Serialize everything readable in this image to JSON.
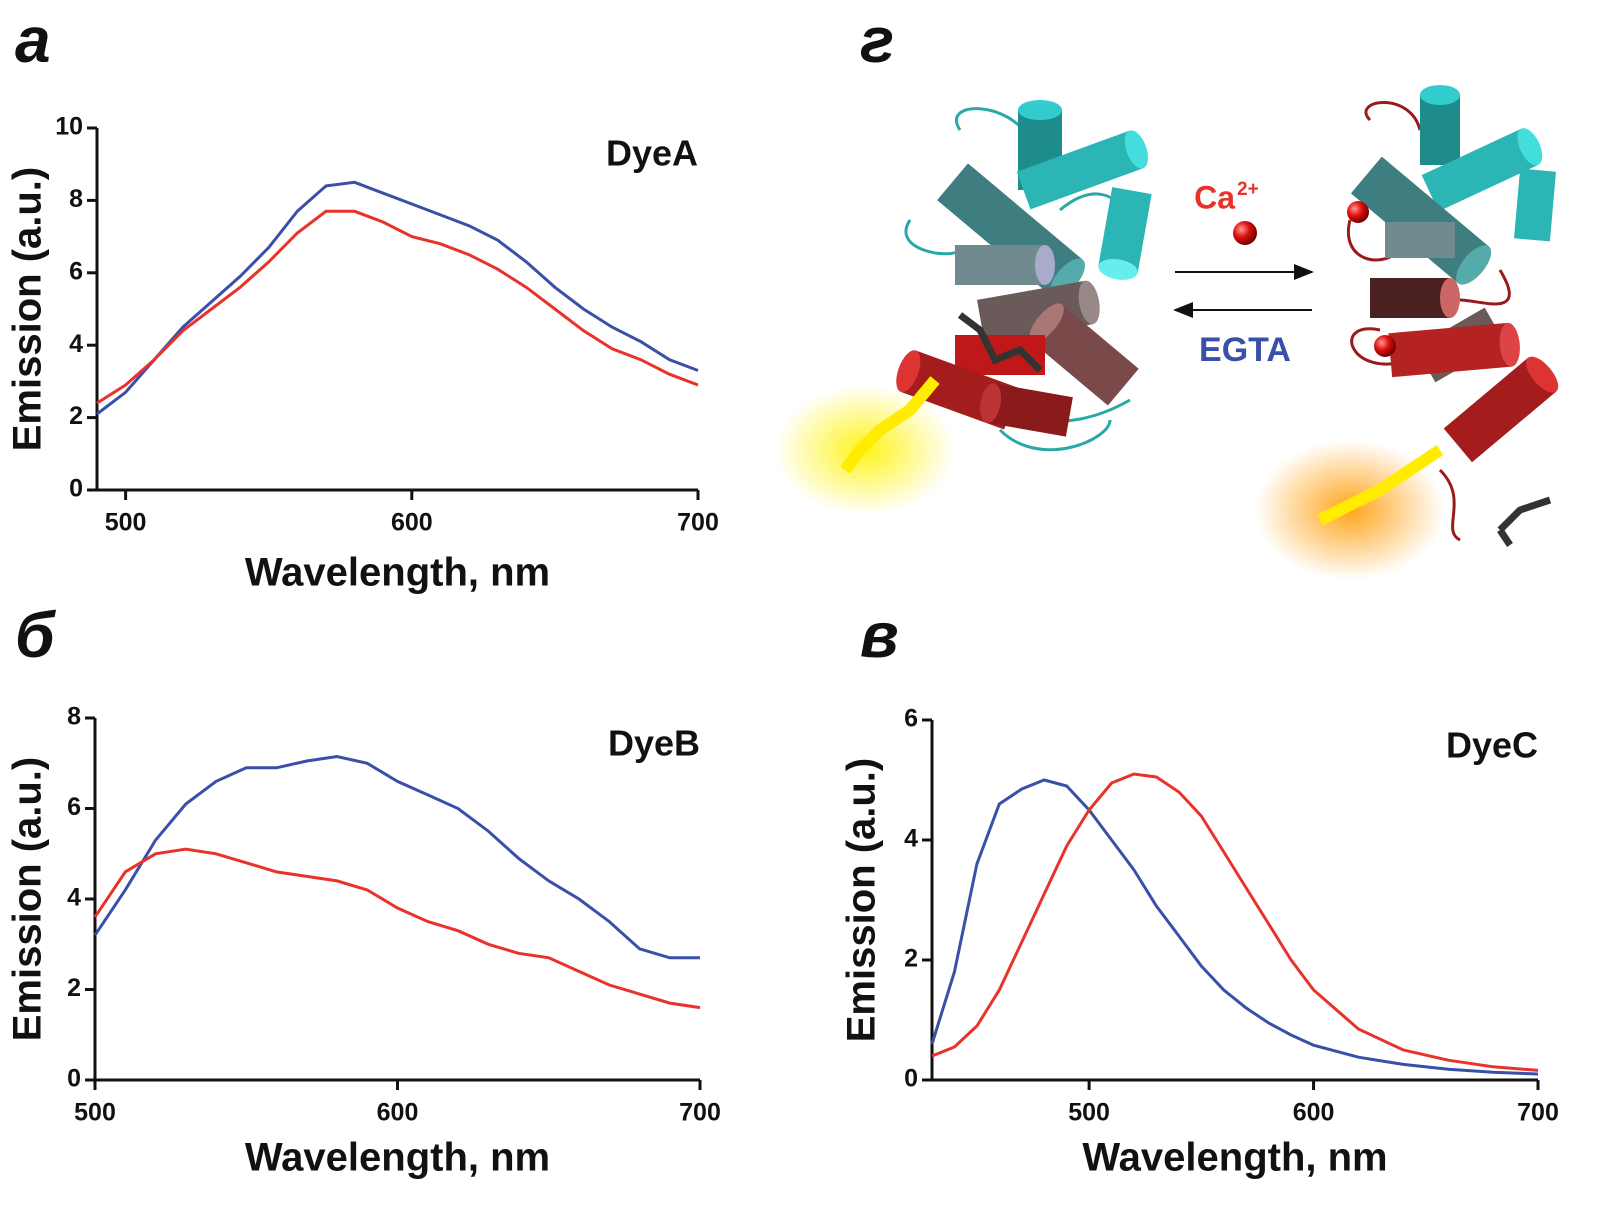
{
  "chart_data": [
    {
      "type": "line",
      "panel_label": "а",
      "title": "DyeA",
      "x_label": "Wavelength, nm",
      "y_label": "Emission (a.u.)",
      "x": [
        490,
        500,
        510,
        520,
        530,
        540,
        550,
        560,
        570,
        580,
        590,
        600,
        610,
        620,
        630,
        640,
        650,
        660,
        670,
        680,
        690,
        700
      ],
      "series": [
        {
          "color": "#3a4fa8",
          "values": [
            2.1,
            2.7,
            3.6,
            4.5,
            5.2,
            5.9,
            6.7,
            7.7,
            8.4,
            8.5,
            8.2,
            7.9,
            7.6,
            7.3,
            6.9,
            6.3,
            5.6,
            5.0,
            4.5,
            4.1,
            3.6,
            3.3
          ]
        },
        {
          "color": "#e8332a",
          "values": [
            2.4,
            2.9,
            3.6,
            4.4,
            5.0,
            5.6,
            6.3,
            7.1,
            7.7,
            7.7,
            7.4,
            7.0,
            6.8,
            6.5,
            6.1,
            5.6,
            5.0,
            4.4,
            3.9,
            3.6,
            3.2,
            2.9
          ]
        }
      ],
      "xlim": [
        490,
        700
      ],
      "xticks": [
        500,
        600,
        700
      ],
      "ylim": [
        0,
        10
      ],
      "yticks": [
        0,
        2,
        4,
        6,
        8,
        10
      ]
    },
    {
      "type": "line",
      "panel_label": "б",
      "title": "DyeB",
      "x_label": "Wavelength, nm",
      "y_label": "Emission (a.u.)",
      "x": [
        500,
        510,
        520,
        530,
        540,
        550,
        560,
        570,
        580,
        590,
        600,
        610,
        620,
        630,
        640,
        650,
        660,
        670,
        680,
        690,
        700
      ],
      "series": [
        {
          "color": "#3a4fa8",
          "values": [
            3.2,
            4.2,
            5.3,
            6.1,
            6.6,
            6.9,
            6.9,
            7.05,
            7.15,
            7.0,
            6.6,
            6.3,
            6.0,
            5.5,
            4.9,
            4.4,
            4.0,
            3.5,
            2.9,
            2.7,
            2.7
          ]
        },
        {
          "color": "#e8332a",
          "values": [
            3.6,
            4.6,
            5.0,
            5.1,
            5.0,
            4.8,
            4.6,
            4.5,
            4.4,
            4.2,
            3.8,
            3.5,
            3.3,
            3.0,
            2.8,
            2.7,
            2.4,
            2.1,
            1.9,
            1.7,
            1.6
          ]
        }
      ],
      "xlim": [
        500,
        700
      ],
      "xticks": [
        500,
        600,
        700
      ],
      "ylim": [
        0,
        8
      ],
      "yticks": [
        0,
        2,
        4,
        6,
        8
      ]
    },
    {
      "type": "line",
      "panel_label": "в",
      "title": "DyeC",
      "x_label": "Wavelength, nm",
      "y_label": "Emission (a.u.)",
      "x": [
        430,
        440,
        450,
        460,
        470,
        480,
        490,
        500,
        510,
        520,
        530,
        540,
        550,
        560,
        570,
        580,
        590,
        600,
        620,
        640,
        660,
        680,
        700
      ],
      "series": [
        {
          "color": "#3a4fa8",
          "values": [
            0.6,
            1.8,
            3.6,
            4.6,
            4.85,
            5.0,
            4.9,
            4.5,
            4.0,
            3.5,
            2.9,
            2.4,
            1.9,
            1.5,
            1.2,
            0.95,
            0.75,
            0.58,
            0.38,
            0.26,
            0.18,
            0.13,
            0.1
          ]
        },
        {
          "color": "#e8332a",
          "values": [
            0.4,
            0.55,
            0.9,
            1.5,
            2.3,
            3.1,
            3.9,
            4.5,
            4.95,
            5.1,
            5.05,
            4.8,
            4.4,
            3.8,
            3.2,
            2.6,
            2.0,
            1.5,
            0.85,
            0.5,
            0.33,
            0.22,
            0.16
          ]
        }
      ],
      "xlim": [
        430,
        700
      ],
      "xticks": [
        500,
        600,
        700
      ],
      "ylim": [
        0,
        6
      ],
      "yticks": [
        0,
        2,
        4,
        6
      ]
    }
  ],
  "diagram": {
    "panel_label": "г",
    "ca_label": "Ca",
    "ca_charge": "2+",
    "egta_label": "EGTA"
  }
}
